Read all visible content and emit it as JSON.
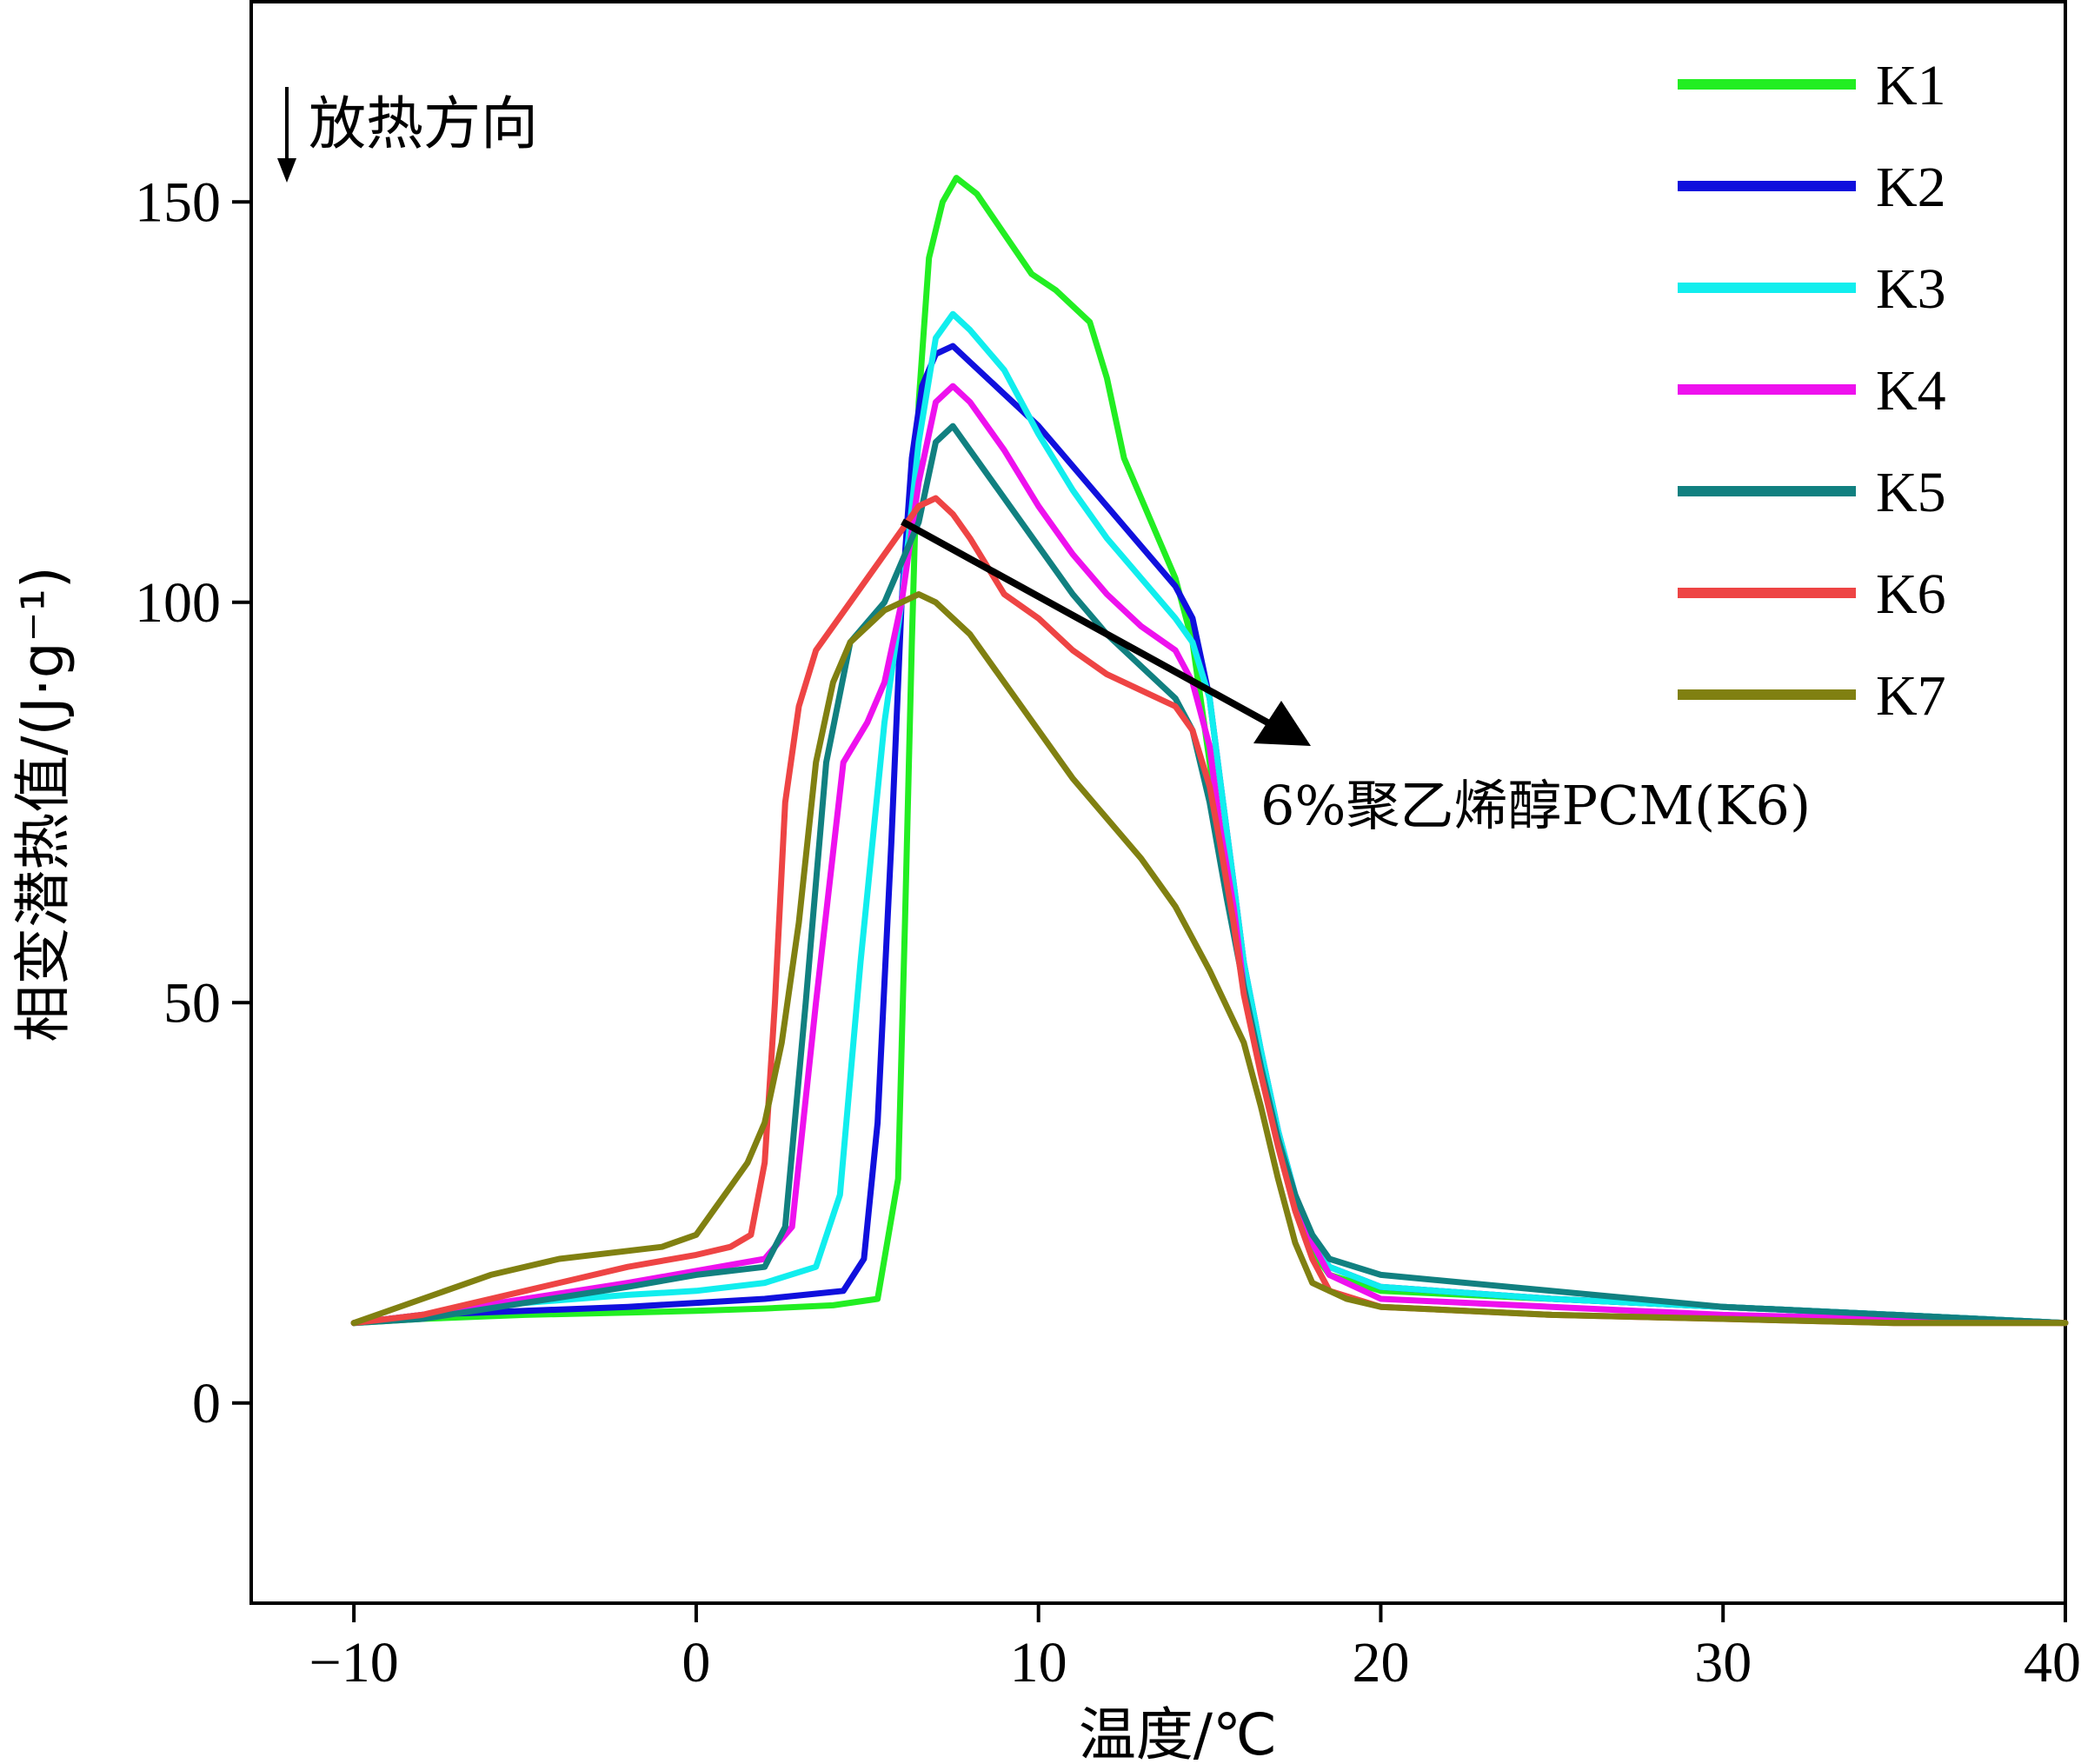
{
  "chart_data": {
    "type": "line",
    "xlabel": "温度/℃",
    "ylabel": "相变潜热值/(J·g⁻¹)",
    "xlim": [
      -13,
      40
    ],
    "ylim": [
      -25,
      175
    ],
    "xticks": [
      -10,
      0,
      10,
      20,
      30,
      40
    ],
    "yticks": [
      0,
      50,
      100,
      150
    ],
    "xtick_labels": [
      "−10",
      "0",
      "10",
      "20",
      "30",
      "40"
    ],
    "ytick_labels": [
      "0",
      "50",
      "100",
      "150"
    ],
    "grid": false,
    "legend_position": "top-right",
    "annotations": {
      "direction_label": "放热方向",
      "arrow_label": "6%聚乙烯醇PCM(K6)"
    },
    "series": [
      {
        "name": "K1",
        "color": "#22ee22",
        "x": [
          -10,
          -8,
          -5,
          -2,
          0,
          2,
          4,
          5.3,
          5.9,
          6.1,
          6.3,
          6.5,
          6.8,
          7.2,
          7.6,
          8.2,
          9,
          9.8,
          10.5,
          11.5,
          12,
          12.5,
          13,
          13.5,
          14,
          14.5,
          15,
          15.3,
          15.7,
          16,
          16.5,
          17,
          17.5,
          18,
          18.5,
          20,
          25,
          30,
          35,
          40
        ],
        "y": [
          10,
          10.5,
          11,
          11.3,
          11.5,
          11.8,
          12.2,
          13,
          28,
          60,
          95,
          125,
          143,
          150,
          153,
          151,
          146,
          141,
          139,
          135,
          128,
          118,
          113,
          108,
          103,
          95,
          80,
          72,
          62,
          53,
          42,
          33,
          25,
          19,
          16,
          14,
          13,
          12,
          11,
          10
        ]
      },
      {
        "name": "K2",
        "color": "#1010dd",
        "x": [
          -10,
          -8,
          -5,
          -2,
          0,
          2,
          4.3,
          4.9,
          5.3,
          5.7,
          6,
          6.3,
          6.6,
          7,
          7.5,
          8,
          9,
          10,
          11,
          12,
          13,
          14,
          14.5,
          15,
          15.3,
          15.7,
          16,
          16.5,
          17,
          17.5,
          18,
          18.5,
          20,
          25,
          30,
          35,
          40
        ],
        "y": [
          10,
          11,
          11.5,
          12,
          12.5,
          13,
          14,
          18,
          35,
          70,
          100,
          118,
          127,
          131,
          132,
          130,
          126,
          122,
          117,
          112,
          107,
          102,
          98,
          88,
          78,
          65,
          55,
          44,
          34,
          26,
          20,
          17,
          14.5,
          13,
          12,
          11,
          10
        ]
      },
      {
        "name": "K3",
        "color": "#11eeee",
        "x": [
          -10,
          -8,
          -5,
          -2,
          0,
          2,
          3.5,
          4.2,
          4.8,
          5.5,
          6,
          6.5,
          7,
          7.5,
          8,
          9,
          10,
          11,
          12,
          13,
          14,
          14.5,
          15,
          15.3,
          15.7,
          16,
          16.5,
          17,
          17.5,
          18,
          18.5,
          20,
          25,
          30,
          35,
          40
        ],
        "y": [
          10,
          11,
          12.5,
          13.5,
          14,
          15,
          17,
          26,
          55,
          85,
          100,
          120,
          133,
          136,
          134,
          129,
          121,
          114,
          108,
          103,
          98,
          95,
          88,
          78,
          65,
          55,
          44,
          34,
          26,
          20,
          17,
          14.5,
          13,
          12,
          11,
          10
        ]
      },
      {
        "name": "K4",
        "color": "#ee11ee",
        "x": [
          -10,
          -8,
          -5,
          -2,
          0,
          2,
          2.8,
          3.5,
          4.3,
          5,
          5.5,
          6,
          6.5,
          7,
          7.5,
          8,
          9,
          10,
          11,
          12,
          13,
          14,
          14.5,
          15,
          15.3,
          15.7,
          16,
          16.5,
          17,
          17.5,
          18,
          18.5,
          20,
          25,
          30,
          35,
          40
        ],
        "y": [
          10,
          11,
          13,
          15,
          16.5,
          18,
          22,
          50,
          80,
          85,
          90,
          100,
          115,
          125,
          127,
          125,
          119,
          112,
          106,
          101,
          97,
          94,
          90,
          82,
          72,
          62,
          52,
          42,
          33,
          25,
          20,
          16,
          13,
          12,
          11,
          10.5,
          10
        ]
      },
      {
        "name": "K5",
        "color": "#118080",
        "x": [
          -10,
          -8,
          -5,
          -2,
          0,
          2,
          2.6,
          3.2,
          3.8,
          4.5,
          5.5,
          6.5,
          7,
          7.5,
          8,
          9,
          10,
          11,
          12,
          13,
          14,
          14.5,
          15,
          15.5,
          16,
          16.5,
          17,
          17.5,
          18,
          18.5,
          20,
          25,
          30,
          35,
          40
        ],
        "y": [
          10,
          10.5,
          12.5,
          14.5,
          16,
          17,
          22,
          50,
          80,
          95,
          100,
          110,
          120,
          122,
          119,
          113,
          107,
          101,
          96,
          92,
          88,
          84,
          75,
          63,
          52,
          42,
          33,
          26,
          21,
          18,
          16,
          14,
          12,
          11,
          10
        ]
      },
      {
        "name": "K6",
        "color": "#ee4444",
        "x": [
          -10,
          -8,
          -5,
          -2,
          0,
          1,
          1.6,
          2,
          2.3,
          2.6,
          3,
          3.5,
          4.5,
          5.5,
          6.5,
          7,
          7.5,
          8,
          9,
          10,
          11,
          12,
          13,
          14,
          14.5,
          15,
          15.3,
          15.7,
          16,
          16.5,
          17,
          17.5,
          18,
          18.5,
          20,
          25,
          30,
          35,
          40
        ],
        "y": [
          10,
          11,
          14,
          17,
          18.5,
          19.5,
          21,
          30,
          50,
          75,
          87,
          94,
          100,
          106,
          112,
          113,
          111,
          108,
          101,
          98,
          94,
          91,
          89,
          87,
          84,
          77,
          70,
          60,
          51,
          41,
          32,
          24,
          18,
          14,
          12,
          11,
          10.5,
          10,
          10
        ]
      },
      {
        "name": "K7",
        "color": "#808011",
        "x": [
          -10,
          -8,
          -6,
          -4,
          -2,
          -1,
          0,
          0.5,
          1,
          1.5,
          2,
          2.5,
          3,
          3.5,
          4,
          4.5,
          5,
          5.5,
          6,
          6.5,
          7,
          8,
          9,
          10,
          11,
          12,
          13,
          14,
          15,
          16,
          16.5,
          17,
          17.5,
          18,
          19,
          20,
          25,
          30,
          35,
          40
        ],
        "y": [
          10,
          13,
          16,
          18,
          19,
          19.5,
          21,
          24,
          27,
          30,
          35,
          45,
          60,
          80,
          90,
          95,
          97,
          99,
          100,
          101,
          100,
          96,
          90,
          84,
          78,
          73,
          68,
          62,
          54,
          45,
          37,
          28,
          20,
          15,
          13,
          12,
          11,
          10.5,
          10,
          10
        ]
      }
    ]
  }
}
